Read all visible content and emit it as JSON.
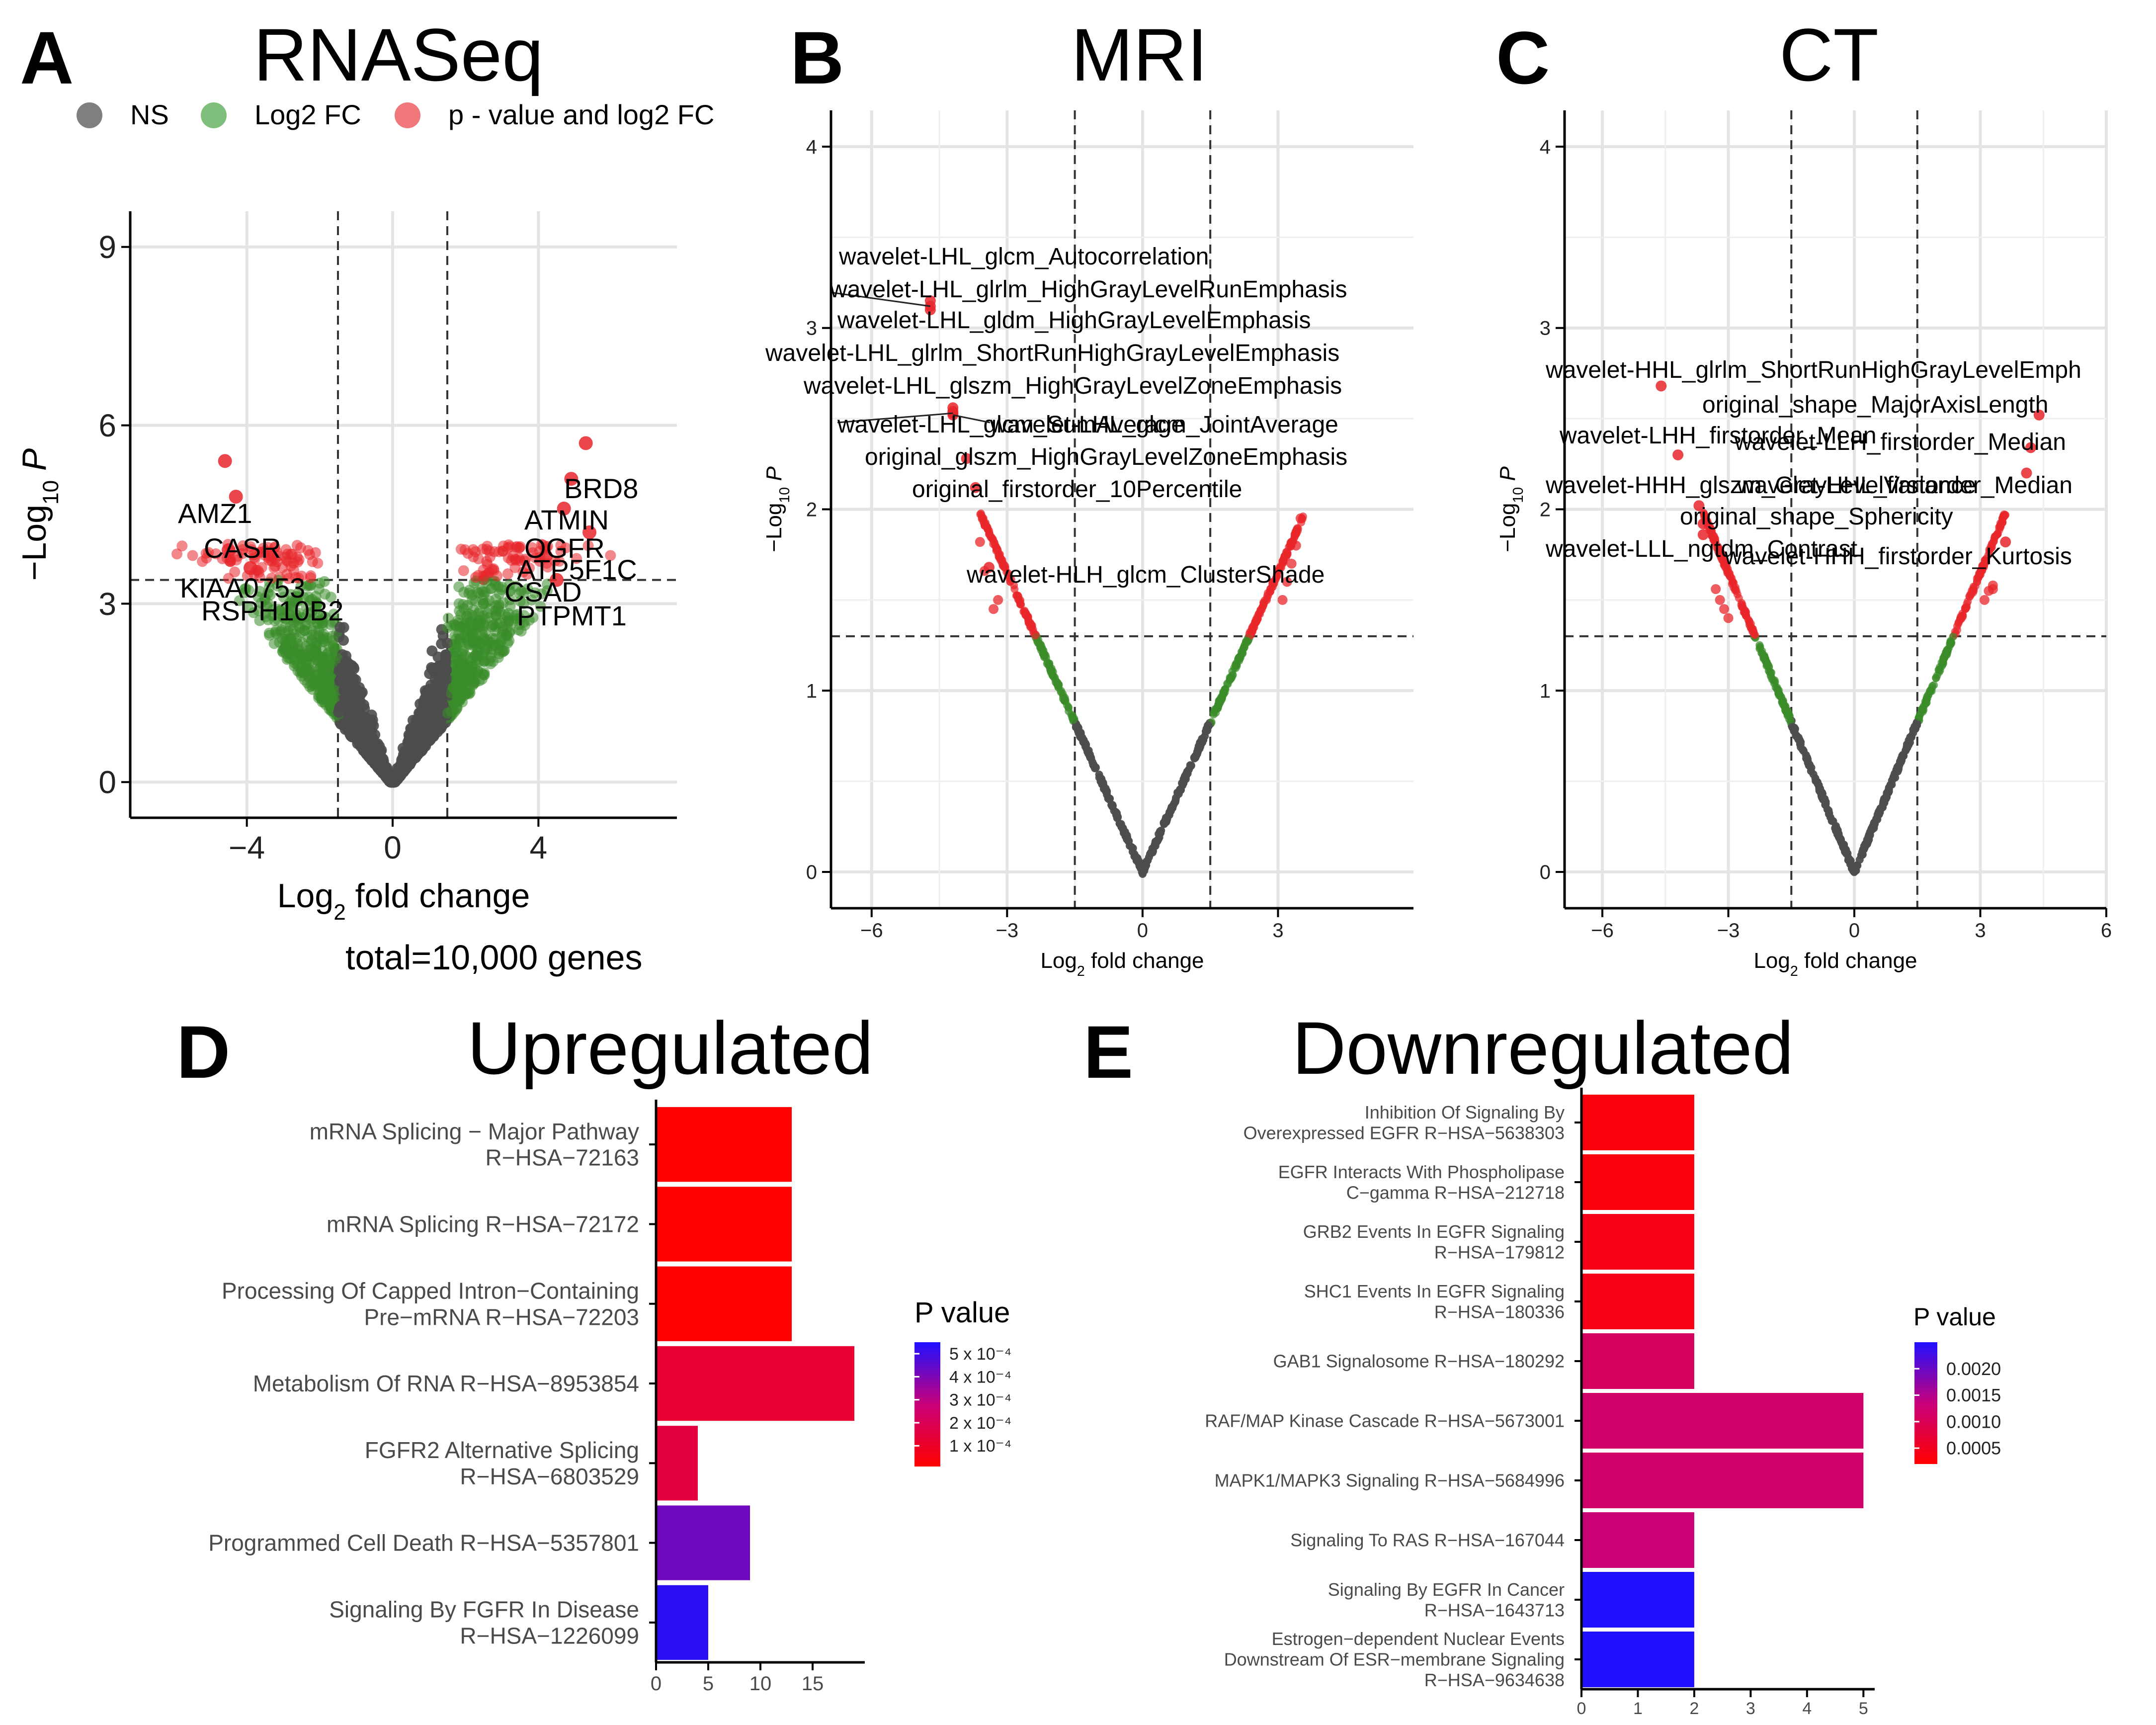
{
  "panel_letters": {
    "a": "A",
    "b": "B",
    "c": "C",
    "d": "D",
    "e": "E"
  },
  "colors": {
    "ns": "#4d4d4d",
    "fc": "#3a8c2a",
    "pfc": "#e8262b",
    "bar_low": "#ff0000",
    "bar_high": "#1f10ff"
  },
  "chart_data": [
    {
      "id": "A",
      "type": "scatter",
      "subtype": "volcano",
      "title": "RNASeq",
      "xlabel": "Log2 fold change",
      "ylabel": "-Log10 P",
      "xlim": [
        -7.2,
        7.8
      ],
      "ylim": [
        -0.6,
        9.6
      ],
      "xticks": [
        -4,
        0,
        4
      ],
      "yticks": [
        0,
        3,
        6,
        9
      ],
      "fc_cutoff": 1.5,
      "p_cutoff": 3.4,
      "legend": {
        "position": "top",
        "items": [
          {
            "key": "ns",
            "label": "NS"
          },
          {
            "key": "fc",
            "label": "Log2 FC"
          },
          {
            "key": "pfc",
            "label": "p - value and log2 FC"
          }
        ]
      },
      "caption": "total=10,000 genes",
      "labeled_points": [
        {
          "label": "AMZ1",
          "x": -4.6,
          "y": 5.4
        },
        {
          "label": "CASR",
          "x": -4.3,
          "y": 4.8
        },
        {
          "label": "KIAA0753",
          "x": -4.5,
          "y": 3.9
        },
        {
          "label": "RSPH10B2",
          "x": -3.9,
          "y": 3.6
        },
        {
          "label": "BRD8",
          "x": 5.3,
          "y": 5.7
        },
        {
          "label": "ATMIN",
          "x": 4.9,
          "y": 5.1
        },
        {
          "label": "OGFR",
          "x": 4.7,
          "y": 4.6
        },
        {
          "label": "ATP5F1C",
          "x": 5.4,
          "y": 4.2
        },
        {
          "label": "CSAD",
          "x": 4.2,
          "y": 3.8
        },
        {
          "label": "PTPMT1",
          "x": 4.5,
          "y": 3.4
        }
      ]
    },
    {
      "id": "B",
      "type": "scatter",
      "subtype": "volcano",
      "title": "MRI",
      "xlabel": "Log2 fold change",
      "ylabel": "-Log10 P",
      "xlim": [
        -6.9,
        6.0
      ],
      "ylim": [
        -0.2,
        4.2
      ],
      "xticks": [
        -6,
        -3,
        0,
        3
      ],
      "yticks": [
        0,
        1,
        2,
        3,
        4
      ],
      "fc_cutoff": 1.5,
      "p_cutoff": 1.3,
      "labeled_points": [
        {
          "label": "wavelet-LHL_glcm_Autocorrelation",
          "x": -4.7,
          "y": 3.15
        },
        {
          "label": "wavelet-LHL_glrlm_HighGrayLevelRunEmphasis",
          "x": -4.7,
          "y": 3.12
        },
        {
          "label": "wavelet-LHL_gldm_HighGrayLevelEmphasis",
          "x": -4.7,
          "y": 3.1
        },
        {
          "label": "wavelet-LHL_glrlm_ShortRunHighGrayLevelEmphasis",
          "x": -4.2,
          "y": 2.56
        },
        {
          "label": "wavelet-LHL_glszm_HighGrayLevelZoneEmphasis",
          "x": -4.2,
          "y": 2.54
        },
        {
          "label": "wavelet-LHL_glcm_SumAverage",
          "x": -4.2,
          "y": 2.53
        },
        {
          "label": "wavelet-LHL_glcm_JointAverage",
          "x": -4.2,
          "y": 2.52
        },
        {
          "label": "original_glszm_HighGrayLevelZoneEmphasis",
          "x": -3.9,
          "y": 2.28
        },
        {
          "label": "original_firstorder_10Percentile",
          "x": -3.7,
          "y": 2.12
        },
        {
          "label": "wavelet-HLH_glcm_ClusterShade",
          "x": -3.4,
          "y": 1.68
        }
      ]
    },
    {
      "id": "C",
      "type": "scatter",
      "subtype": "volcano",
      "title": "CT",
      "xlabel": "Log2 fold change",
      "ylabel": "-Log10 P",
      "xlim": [
        -6.9,
        6.0
      ],
      "ylim": [
        -0.2,
        4.2
      ],
      "xticks": [
        -6,
        -3,
        0,
        3,
        6
      ],
      "yticks": [
        0,
        1,
        2,
        3,
        4
      ],
      "fc_cutoff": 1.5,
      "p_cutoff": 1.3,
      "labeled_points": [
        {
          "label": "wavelet-HHL_glrlm_ShortRunHighGrayLevelEmph",
          "x": -4.6,
          "y": 2.68
        },
        {
          "label": "original_shape_MajorAxisLength",
          "x": 4.4,
          "y": 2.52
        },
        {
          "label": "wavelet-LHH_firstorder_Mean",
          "x": -4.2,
          "y": 2.3
        },
        {
          "label": "wavelet-LLH_firstorder_Median",
          "x": 4.2,
          "y": 2.34
        },
        {
          "label": "wavelet-HHH_glszm_GrayLevelVariance",
          "x": -3.7,
          "y": 2.02
        },
        {
          "label": "wavelet-HHL_firstorder_Median",
          "x": 4.1,
          "y": 2.2
        },
        {
          "label": "original_shape_Sphericity",
          "x": -3.6,
          "y": 1.92
        },
        {
          "label": "wavelet-LLL_ngtdm_Contrast",
          "x": -3.6,
          "y": 1.86
        },
        {
          "label": "wavelet-HHH_firstorder_Kurtosis",
          "x": 3.6,
          "y": 1.82
        }
      ]
    },
    {
      "id": "D",
      "type": "bar",
      "orientation": "horizontal",
      "title": "Upregulated",
      "xlabel": "",
      "xlim": [
        0,
        20
      ],
      "xticks": [
        0,
        5,
        10,
        15
      ],
      "categories": [
        "mRNA Splicing − Major Pathway\nR−HSA−72163",
        "mRNA Splicing R−HSA−72172",
        "Processing Of Capped Intron−Containing\nPre−mRNA R−HSA−72203",
        "Metabolism Of RNA R−HSA−8953854",
        "FGFR2 Alternative Splicing\nR−HSA−6803529",
        "Programmed Cell Death R−HSA−5357801",
        "Signaling By FGFR In Disease\nR−HSA−1226099"
      ],
      "values": [
        13,
        13,
        13,
        19,
        4,
        9,
        5
      ],
      "p_values": [
        1e-05,
        1e-05,
        1e-05,
        0.00012,
        0.00015,
        0.00042,
        0.00053
      ],
      "legend": {
        "title": "P value",
        "position": "right",
        "range": [
          1e-05,
          0.00055
        ],
        "ticks": [
          {
            "value": 0.0005,
            "label": "5 x 10⁻⁴"
          },
          {
            "value": 0.0004,
            "label": "4 x 10⁻⁴"
          },
          {
            "value": 0.0003,
            "label": "3 x 10⁻⁴"
          },
          {
            "value": 0.0002,
            "label": "2 x 10⁻⁴"
          },
          {
            "value": 0.0001,
            "label": "1 x 10⁻⁴"
          }
        ]
      }
    },
    {
      "id": "E",
      "type": "bar",
      "orientation": "horizontal",
      "title": "Downregulated",
      "xlabel": "",
      "xlim": [
        0,
        5.2
      ],
      "xticks": [
        0,
        1,
        2,
        3,
        4,
        5
      ],
      "categories": [
        "Inhibition Of Signaling By\nOverexpressed EGFR R−HSA−5638303",
        "EGFR Interacts With Phospholipase\nC−gamma R−HSA−212718",
        "GRB2 Events In EGFR Signaling\nR−HSA−179812",
        "SHC1 Events In EGFR Signaling\nR−HSA−180336",
        "GAB1 Signalosome R−HSA−180292",
        "RAF/MAP Kinase Cascade R−HSA−5673001",
        "MAPK1/MAPK3 Signaling R−HSA−5684996",
        "Signaling To RAS R−HSA−167044",
        "Signaling By EGFR In Cancer\nR−HSA−1643713",
        "Estrogen−dependent Nuclear Events\nDownstream Of ESR−membrane Signaling\nR−HSA−9634638"
      ],
      "values": [
        2,
        2,
        2,
        2,
        2,
        5,
        5,
        2,
        2,
        2
      ],
      "p_values": [
        0.0003,
        0.0003,
        0.0004,
        0.0004,
        0.0011,
        0.0012,
        0.0012,
        0.0013,
        0.0025,
        0.0025
      ],
      "legend": {
        "title": "P value",
        "position": "right",
        "range": [
          0.0002,
          0.0025
        ],
        "ticks": [
          {
            "value": 0.002,
            "label": "0.0020"
          },
          {
            "value": 0.0015,
            "label": "0.0015"
          },
          {
            "value": 0.001,
            "label": "0.0010"
          },
          {
            "value": 0.0005,
            "label": "0.0005"
          }
        ]
      }
    }
  ]
}
